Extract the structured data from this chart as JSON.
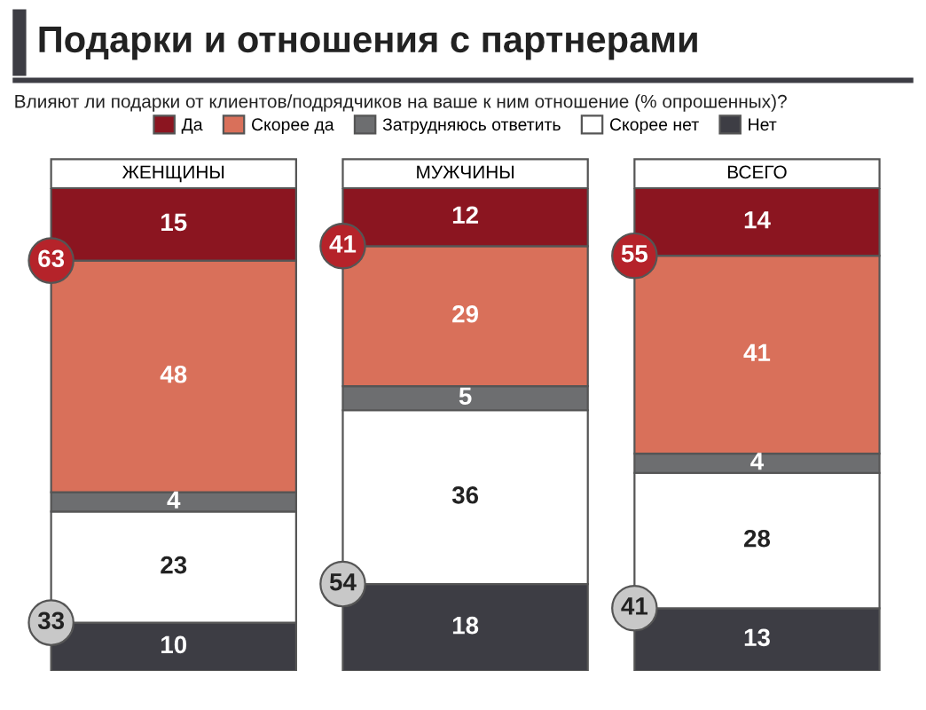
{
  "chart_data": {
    "type": "bar",
    "stacked": true,
    "title": "Подарки и отношения с партнерами",
    "subtitle": "Влияют ли подарки от клиентов/подрядчиков на ваше к ним отношение (% опрошенных)?",
    "categories": [
      "ЖЕНЩИНЫ",
      "МУЖЧИНЫ",
      "ВСЕГО"
    ],
    "series": [
      {
        "name": "Нет",
        "color": "#3d3d44",
        "values": [
          10,
          18,
          13
        ]
      },
      {
        "name": "Скорее нет",
        "color": "#ffffff",
        "values": [
          23,
          36,
          28
        ]
      },
      {
        "name": "Затрудняюсь ответить",
        "color": "#6d6e70",
        "values": [
          4,
          5,
          4
        ]
      },
      {
        "name": "Скорее да",
        "color": "#d9705a",
        "values": [
          48,
          29,
          41
        ]
      },
      {
        "name": "Да",
        "color": "#8b1520",
        "values": [
          15,
          12,
          14
        ]
      }
    ],
    "data_labels": true,
    "legend": "top",
    "annotations": [
      "63",
      "33",
      "41",
      "54",
      "55",
      "41"
    ]
  }
}
